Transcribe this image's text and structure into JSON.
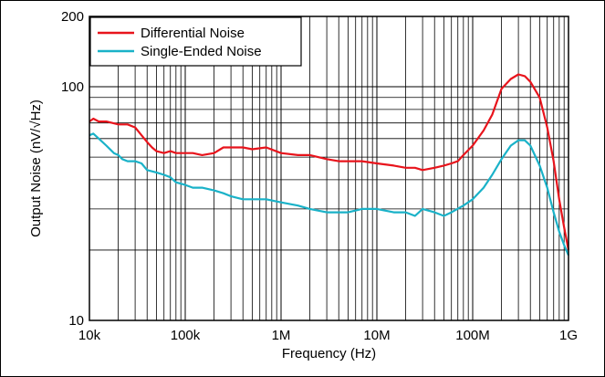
{
  "chart_data": {
    "type": "line",
    "title": "",
    "xlabel": "Frequency (Hz)",
    "ylabel": "Output Noise (nV/√Hz)",
    "x_scale": "log",
    "y_scale": "log",
    "xlim": [
      10000,
      1000000000
    ],
    "ylim": [
      10,
      200
    ],
    "x_ticks": [
      {
        "value": 10000,
        "label": "10k"
      },
      {
        "value": 100000,
        "label": "100k"
      },
      {
        "value": 1000000,
        "label": "1M"
      },
      {
        "value": 10000000,
        "label": "10M"
      },
      {
        "value": 100000000,
        "label": "100M"
      },
      {
        "value": 1000000000,
        "label": "1G"
      }
    ],
    "y_ticks": [
      {
        "value": 10,
        "label": "10"
      },
      {
        "value": 100,
        "label": "100"
      },
      {
        "value": 200,
        "label": "200"
      }
    ],
    "grid": true,
    "legend_position": "top-left",
    "series": [
      {
        "name": "Differential Noise",
        "color": "#e8141c",
        "points": [
          [
            10000,
            71
          ],
          [
            11000,
            73
          ],
          [
            12500,
            71
          ],
          [
            15000,
            71
          ],
          [
            20000,
            69
          ],
          [
            25000,
            69
          ],
          [
            30000,
            67
          ],
          [
            35000,
            62
          ],
          [
            40000,
            58
          ],
          [
            45000,
            55
          ],
          [
            50000,
            53
          ],
          [
            60000,
            52
          ],
          [
            70000,
            53
          ],
          [
            80000,
            52
          ],
          [
            100000,
            52
          ],
          [
            120000,
            52
          ],
          [
            150000,
            51
          ],
          [
            200000,
            52
          ],
          [
            250000,
            55
          ],
          [
            300000,
            55
          ],
          [
            400000,
            55
          ],
          [
            500000,
            54
          ],
          [
            700000,
            55
          ],
          [
            1000000,
            52
          ],
          [
            1500000,
            51
          ],
          [
            2000000,
            51
          ],
          [
            3000000,
            49
          ],
          [
            4000000,
            48
          ],
          [
            5000000,
            48
          ],
          [
            7000000,
            48
          ],
          [
            10000000,
            47
          ],
          [
            15000000,
            46
          ],
          [
            20000000,
            45
          ],
          [
            25000000,
            45
          ],
          [
            30000000,
            44
          ],
          [
            40000000,
            45
          ],
          [
            50000000,
            46
          ],
          [
            60000000,
            47
          ],
          [
            70000000,
            48
          ],
          [
            80000000,
            51
          ],
          [
            100000000,
            56
          ],
          [
            130000000,
            65
          ],
          [
            160000000,
            76
          ],
          [
            200000000,
            98
          ],
          [
            250000000,
            108
          ],
          [
            300000000,
            113
          ],
          [
            350000000,
            111
          ],
          [
            400000000,
            105
          ],
          [
            500000000,
            90
          ],
          [
            600000000,
            67
          ],
          [
            700000000,
            48
          ],
          [
            800000000,
            33
          ],
          [
            900000000,
            25
          ],
          [
            1000000000,
            20
          ]
        ]
      },
      {
        "name": "Single-Ended Noise",
        "color": "#1ab2c8",
        "points": [
          [
            10000,
            62
          ],
          [
            11000,
            63
          ],
          [
            12500,
            60
          ],
          [
            15000,
            56
          ],
          [
            18000,
            52
          ],
          [
            20000,
            51
          ],
          [
            22000,
            49
          ],
          [
            25000,
            48
          ],
          [
            30000,
            48
          ],
          [
            35000,
            47
          ],
          [
            40000,
            44
          ],
          [
            50000,
            43
          ],
          [
            60000,
            42
          ],
          [
            70000,
            41
          ],
          [
            80000,
            39
          ],
          [
            100000,
            38
          ],
          [
            120000,
            37
          ],
          [
            150000,
            37
          ],
          [
            200000,
            36
          ],
          [
            250000,
            35
          ],
          [
            300000,
            34
          ],
          [
            400000,
            33
          ],
          [
            500000,
            33
          ],
          [
            700000,
            33
          ],
          [
            1000000,
            32
          ],
          [
            1500000,
            31
          ],
          [
            2000000,
            30
          ],
          [
            3000000,
            29
          ],
          [
            4000000,
            29
          ],
          [
            5000000,
            29
          ],
          [
            7000000,
            30
          ],
          [
            10000000,
            30
          ],
          [
            15000000,
            29
          ],
          [
            20000000,
            29
          ],
          [
            25000000,
            28
          ],
          [
            30000000,
            30
          ],
          [
            40000000,
            29
          ],
          [
            50000000,
            28
          ],
          [
            60000000,
            29
          ],
          [
            80000000,
            31
          ],
          [
            100000000,
            33
          ],
          [
            130000000,
            37
          ],
          [
            160000000,
            42
          ],
          [
            200000000,
            49
          ],
          [
            250000000,
            56
          ],
          [
            300000000,
            59
          ],
          [
            350000000,
            59
          ],
          [
            400000000,
            56
          ],
          [
            500000000,
            46
          ],
          [
            600000000,
            37
          ],
          [
            700000000,
            29
          ],
          [
            800000000,
            24
          ],
          [
            900000000,
            21
          ],
          [
            1000000000,
            19
          ]
        ]
      }
    ]
  }
}
